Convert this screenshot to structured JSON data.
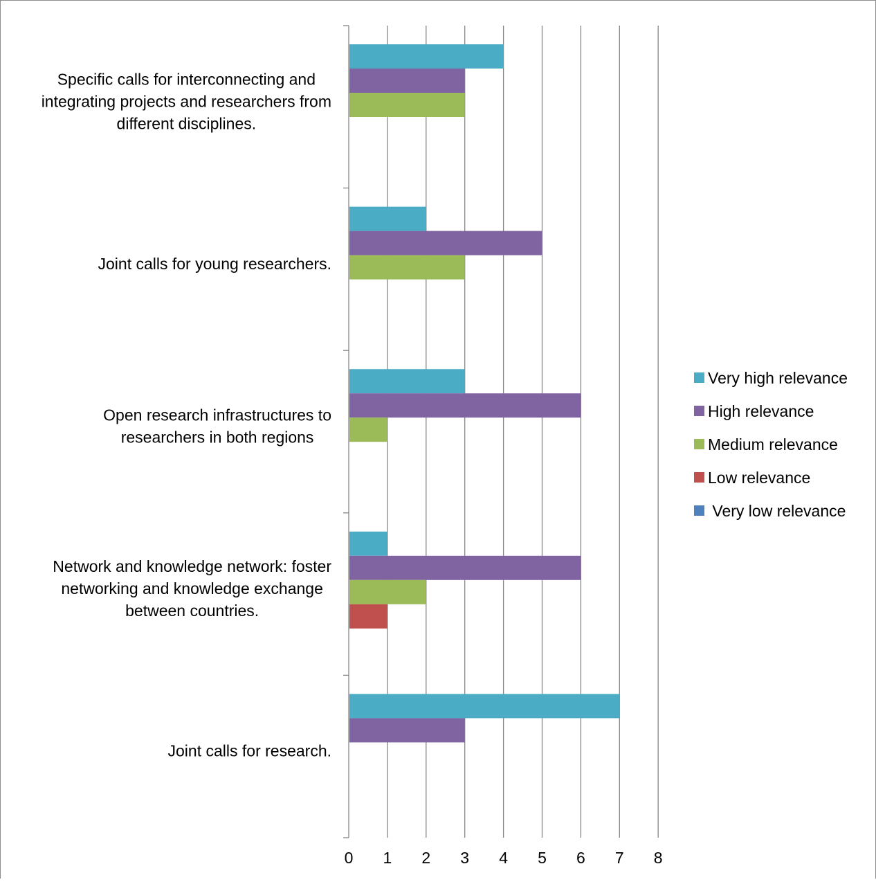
{
  "chart_data": {
    "type": "bar",
    "orientation": "horizontal",
    "title": "",
    "xlabel": "",
    "ylabel": "",
    "xlim": [
      0,
      8
    ],
    "x_ticks": [
      "0",
      "1",
      "2",
      "3",
      "4",
      "5",
      "6",
      "7",
      "8"
    ],
    "grid": "vertical",
    "legend_position": "right",
    "categories": [
      [
        "Specific calls for interconnecting and",
        "integrating projects and researchers from",
        "different disciplines."
      ],
      [
        "Joint calls for young researchers."
      ],
      [
        "Open research infrastructures to",
        "researchers in both regions"
      ],
      [
        "Network and knowledge network: foster",
        "networking and knowledge exchange",
        "between countries."
      ],
      [
        "Joint calls for research."
      ]
    ],
    "series": [
      {
        "name": "Very high relevance",
        "color": "#4bacc6",
        "values": [
          4,
          2,
          3,
          1,
          7
        ]
      },
      {
        "name": "High relevance",
        "color": "#8064a2",
        "values": [
          3,
          5,
          6,
          6,
          3
        ]
      },
      {
        "name": "Medium relevance",
        "color": "#9bbb59",
        "values": [
          3,
          3,
          1,
          2,
          0
        ]
      },
      {
        "name": "Low relevance",
        "color": "#c0504d",
        "values": [
          0,
          0,
          0,
          1,
          0
        ]
      },
      {
        "name": " Very low relevance",
        "color": "#4f81bd",
        "values": [
          0,
          0,
          0,
          0,
          0
        ]
      }
    ]
  }
}
